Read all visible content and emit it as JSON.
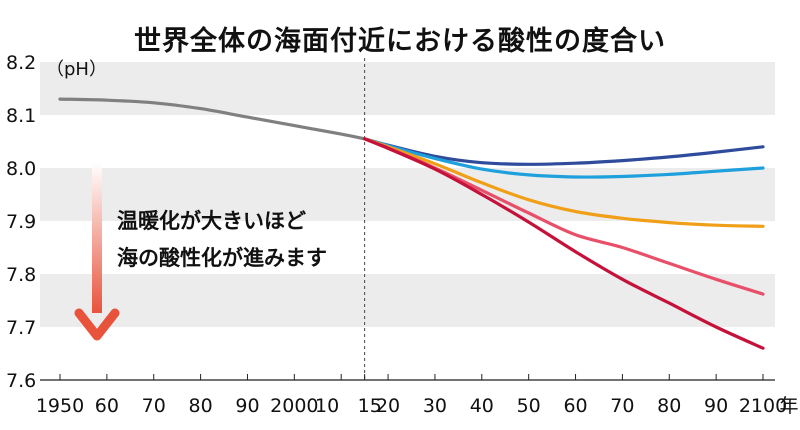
{
  "chart_data": {
    "type": "line",
    "title": "世界全体の海面付近における酸性の度合い",
    "ylabel": "（pH）",
    "x_unit": "年",
    "ylim": [
      7.6,
      8.2
    ],
    "xlim": [
      1950,
      2100
    ],
    "y_ticks": [
      {
        "value": 8.2,
        "label": "8.2"
      },
      {
        "value": 8.1,
        "label": "8.1"
      },
      {
        "value": 8.0,
        "label": "8.0"
      },
      {
        "value": 7.9,
        "label": "7.9"
      },
      {
        "value": 7.8,
        "label": "7.8"
      },
      {
        "value": 7.7,
        "label": "7.7"
      },
      {
        "value": 7.6,
        "label": "7.6"
      }
    ],
    "x_ticks": [
      {
        "value": 1950,
        "label": "1950"
      },
      {
        "value": 1960,
        "label": "60"
      },
      {
        "value": 1970,
        "label": "70"
      },
      {
        "value": 1980,
        "label": "80"
      },
      {
        "value": 1990,
        "label": "90"
      },
      {
        "value": 2000,
        "label": "2000"
      },
      {
        "value": 2010,
        "label": "10"
      },
      {
        "value": 2015,
        "label": "15"
      },
      {
        "value": 2020,
        "label": "20"
      },
      {
        "value": 2030,
        "label": "30"
      },
      {
        "value": 2040,
        "label": "40"
      },
      {
        "value": 2050,
        "label": "50"
      },
      {
        "value": 2060,
        "label": "60"
      },
      {
        "value": 2070,
        "label": "70"
      },
      {
        "value": 2080,
        "label": "80"
      },
      {
        "value": 2090,
        "label": "90"
      },
      {
        "value": 2100,
        "label": "2100"
      }
    ],
    "divider_x": 2015,
    "annotation": [
      "温暖化が大きいほど",
      "海の酸性化が進みます"
    ],
    "series": [
      {
        "color": "#808080",
        "x": [
          1950,
          1960,
          1970,
          1980,
          1990,
          2000,
          2010,
          2015
        ],
        "y": [
          8.13,
          8.128,
          8.123,
          8.112,
          8.096,
          8.08,
          8.064,
          8.055
        ]
      },
      {
        "color": "#2e4b9c",
        "x": [
          2015,
          2020,
          2030,
          2040,
          2050,
          2060,
          2070,
          2080,
          2090,
          2100
        ],
        "y": [
          8.055,
          8.043,
          8.022,
          8.01,
          8.007,
          8.009,
          8.014,
          8.021,
          8.03,
          8.04
        ]
      },
      {
        "color": "#1ea0dc",
        "x": [
          2015,
          2020,
          2030,
          2040,
          2050,
          2060,
          2070,
          2080,
          2090,
          2100
        ],
        "y": [
          8.055,
          8.042,
          8.018,
          7.998,
          7.987,
          7.983,
          7.984,
          7.988,
          7.994,
          8.0
        ]
      },
      {
        "color": "#f0a018",
        "x": [
          2015,
          2020,
          2030,
          2040,
          2050,
          2060,
          2070,
          2080,
          2090,
          2100
        ],
        "y": [
          8.055,
          8.04,
          8.008,
          7.972,
          7.94,
          7.918,
          7.905,
          7.897,
          7.892,
          7.89
        ]
      },
      {
        "color": "#e8506a",
        "x": [
          2015,
          2020,
          2030,
          2040,
          2050,
          2060,
          2070,
          2080,
          2090,
          2100
        ],
        "y": [
          8.055,
          8.038,
          8.0,
          7.958,
          7.915,
          7.874,
          7.85,
          7.82,
          7.79,
          7.762
        ]
      },
      {
        "color": "#c4123a",
        "x": [
          2015,
          2020,
          2030,
          2040,
          2050,
          2060,
          2070,
          2080,
          2090,
          2100
        ],
        "y": [
          8.055,
          8.037,
          7.998,
          7.95,
          7.898,
          7.842,
          7.79,
          7.745,
          7.7,
          7.66
        ]
      }
    ]
  }
}
